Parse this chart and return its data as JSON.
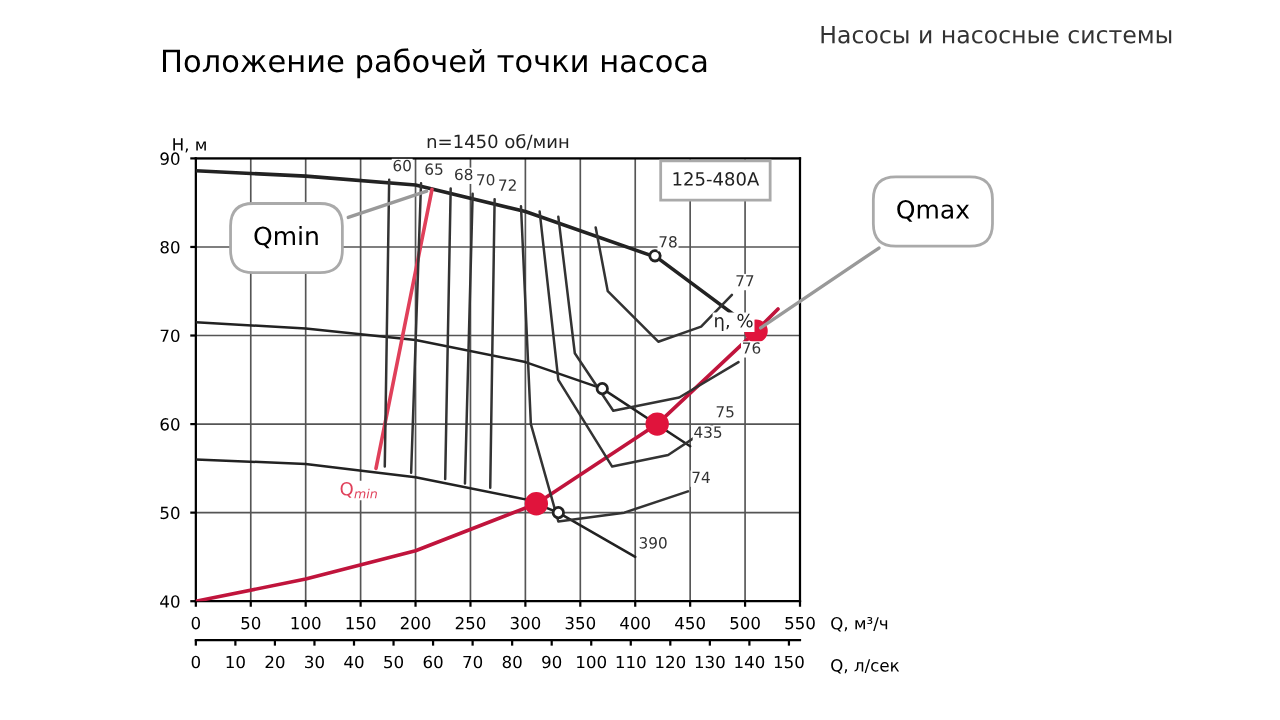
{
  "chart_data": {
    "type": "line",
    "title": "Положение рабочей точки насоса",
    "subtitle": "Насосы и насосные системы",
    "xlabel": "Q, м³/ч",
    "ylabel": "H, м",
    "x2label": "Q, л/сек",
    "xlim": [
      0,
      550
    ],
    "xticks": [
      0,
      50,
      100,
      150,
      200,
      250,
      300,
      350,
      400,
      450,
      500,
      550
    ],
    "ylim": [
      40,
      90
    ],
    "yticks": [
      40,
      50,
      60,
      70,
      80,
      90
    ],
    "x2lim": [
      0,
      152.8
    ],
    "x2ticks": [
      0,
      10,
      20,
      30,
      40,
      50,
      60,
      70,
      80,
      90,
      100,
      110,
      120,
      130,
      140,
      150
    ],
    "grid": true,
    "legend": false,
    "annotations": [
      "n=1450 об/мин",
      "125-480A",
      "η, %",
      "Q$_{min}$",
      {
        "text": "Qmin",
        "x": 215,
        "y": 86.5
      },
      {
        "text": "Qmax",
        "x": 510,
        "y": 70.5
      }
    ],
    "series": [
      {
        "color": "#222222",
        "x": [
          0,
          100,
          200,
          300,
          420,
          510
        ],
        "values": [
          88.6,
          88,
          87,
          84,
          78.8,
          70.5
        ]
      },
      {
        "type": "line",
        "name": "435",
        "color": "#222222",
        "x": [
          0,
          100,
          200,
          300,
          370,
          450
        ],
        "values": [
          71.5,
          70.8,
          69.5,
          67,
          64,
          57.5
        ]
      },
      {
        "type": "line",
        "name": "390",
        "color": "#222222",
        "x": [
          0,
          100,
          200,
          300,
          330,
          400
        ],
        "values": [
          56,
          55.5,
          54,
          51.5,
          50,
          45
        ]
      },
      {
        "type": "line",
        "color": "#c0143c",
        "x": [
          0,
          100,
          200,
          310,
          420,
          510,
          530
        ],
        "values": [
          40,
          42.5,
          45.7,
          51,
          60,
          70.5,
          73
        ]
      },
      {
        "type": "line",
        "color": "#e0405a",
        "x": [
          164,
          215
        ],
        "values": [
          55,
          86.5
        ]
      },
      {
        "type": "line",
        "name": "60",
        "color": "#333333",
        "x": [
          172,
          176
        ],
        "values": [
          55.2,
          87.6
        ]
      },
      {
        "type": "line",
        "name": "65",
        "color": "#333333",
        "x": [
          196,
          205
        ],
        "values": [
          54.5,
          87.2
        ]
      },
      {
        "type": "line",
        "name": "68",
        "color": "#333333",
        "x": [
          227,
          232
        ],
        "values": [
          53.8,
          86.6
        ]
      },
      {
        "type": "line",
        "name": "70",
        "color": "#333333",
        "x": [
          245,
          252
        ],
        "values": [
          53.3,
          86
        ]
      },
      {
        "type": "line",
        "name": "72",
        "color": "#333333",
        "x": [
          268,
          272
        ],
        "values": [
          52.8,
          85.4
        ]
      },
      {
        "type": "line",
        "name": "74",
        "color": "#333333",
        "x": [
          296,
          305,
          330,
          390,
          448
        ],
        "values": [
          84.6,
          60,
          49,
          50,
          52.4
        ]
      },
      {
        "type": "line",
        "name": "75",
        "color": "#333333",
        "x": [
          313,
          330,
          379,
          430,
          470
        ],
        "values": [
          84,
          65,
          55.2,
          56.5,
          59.8
        ]
      },
      {
        "type": "line",
        "name": "76",
        "color": "#333333",
        "x": [
          330,
          345,
          380,
          440,
          494
        ],
        "values": [
          83.4,
          68,
          61.5,
          63,
          67
        ]
      },
      {
        "type": "line",
        "name": "77",
        "color": "#333333",
        "x": [
          364,
          375,
          421,
          460,
          488
        ],
        "values": [
          82.2,
          75,
          69.3,
          71,
          74.6
        ]
      },
      {
        "type": "scatter",
        "name": "78",
        "color": "#222222",
        "marker": "circle",
        "x": [
          418
        ],
        "values": [
          79
        ]
      },
      {
        "type": "scatter",
        "color": "#222222",
        "marker": "circle",
        "x": [
          370,
          330
        ],
        "values": [
          64,
          50
        ]
      },
      {
        "type": "scatter",
        "color": "#e0143c",
        "marker": "circle",
        "x": [
          310,
          420,
          510
        ],
        "values": [
          51,
          60,
          70.5
        ]
      }
    ]
  }
}
